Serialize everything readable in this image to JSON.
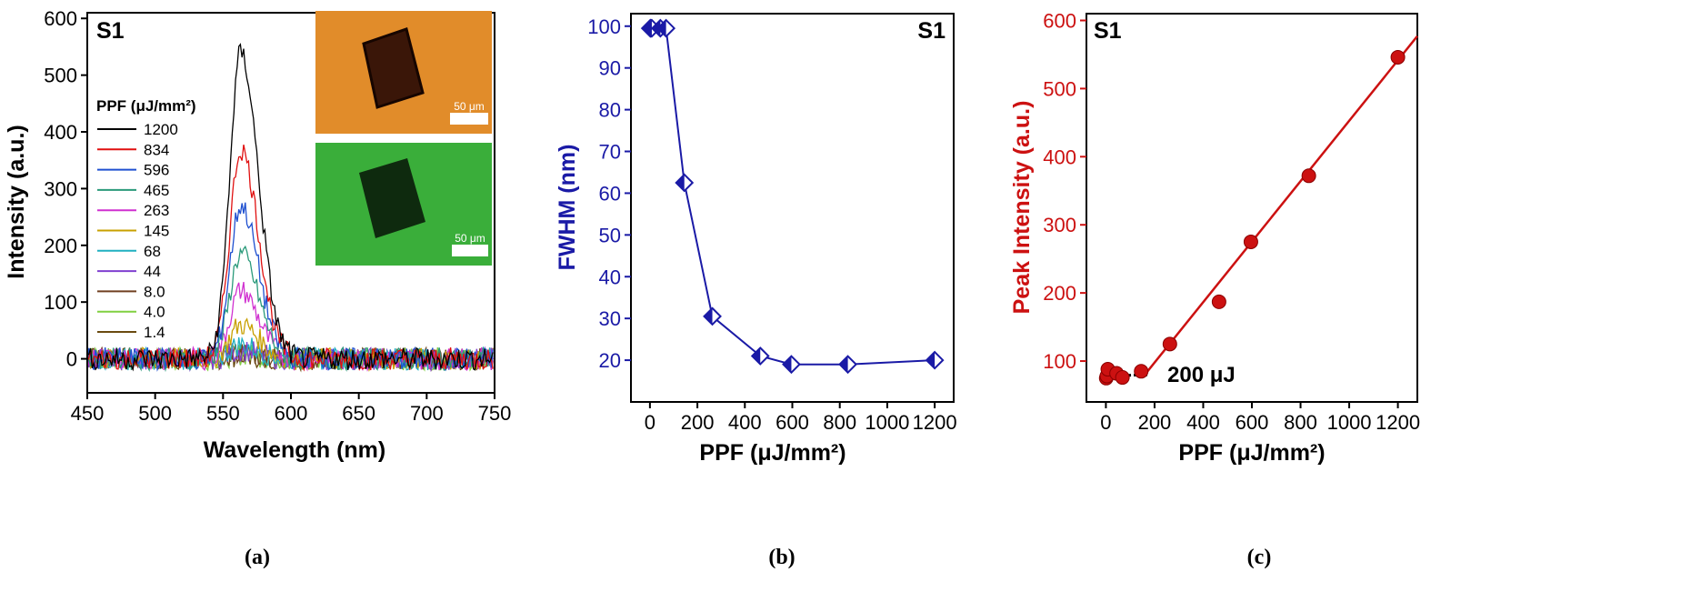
{
  "captions": [
    "(a)",
    "(b)",
    "(c)"
  ],
  "colors": {
    "panel_b": "#1a1aa6",
    "panel_c": "#cc1111",
    "axis": "#000000"
  },
  "insets": [
    {
      "kind": "optical-image",
      "scale_label": "50 μm",
      "color": "#d87a20"
    },
    {
      "kind": "fluorescence-image",
      "scale_label": "50 μm",
      "color": "#2aa02a"
    }
  ],
  "chart_data": [
    {
      "type": "line",
      "panel": "(a)",
      "corner_label": "S1",
      "xlabel": "Wavelength (nm)",
      "ylabel": "Intensity (a.u.)",
      "xlim": [
        450,
        750
      ],
      "ylim": [
        -60,
        610
      ],
      "xticks": [
        450,
        500,
        550,
        600,
        650,
        700,
        750
      ],
      "yticks": [
        0,
        100,
        200,
        300,
        400,
        500,
        600
      ],
      "legend_title": "PPF (μJ/mm²)",
      "legend_position": "left",
      "peak_wavelength": 563,
      "series": [
        {
          "name": "1200",
          "peak": 540,
          "color": "#000000"
        },
        {
          "name": "834",
          "peak": 370,
          "color": "#e01010"
        },
        {
          "name": "596",
          "peak": 270,
          "color": "#1f50d0"
        },
        {
          "name": "465",
          "peak": 185,
          "color": "#2a9a7a"
        },
        {
          "name": "263",
          "peak": 120,
          "color": "#d030d0"
        },
        {
          "name": "145",
          "peak": 60,
          "color": "#c8a000"
        },
        {
          "name": "68",
          "peak": 25,
          "color": "#20b0c0"
        },
        {
          "name": "44",
          "peak": 15,
          "color": "#8040d0"
        },
        {
          "name": "8.0",
          "peak": 10,
          "color": "#704020"
        },
        {
          "name": "4.0",
          "peak": 8,
          "color": "#80d040"
        },
        {
          "name": "1.4",
          "peak": 6,
          "color": "#6a4a10"
        }
      ]
    },
    {
      "type": "line",
      "panel": "(b)",
      "corner_label": "S1",
      "xlabel": "PPF (μJ/mm²)",
      "ylabel": "FWHM (nm)",
      "xlim": [
        -80,
        1280
      ],
      "ylim": [
        10,
        103
      ],
      "xticks": [
        0,
        200,
        400,
        600,
        800,
        1000,
        1200
      ],
      "yticks": [
        20,
        30,
        40,
        50,
        60,
        70,
        80,
        90,
        100
      ],
      "marker": "half-filled-diamond",
      "x": [
        1.4,
        4,
        8,
        44,
        68,
        145,
        263,
        465,
        596,
        834,
        1200
      ],
      "y": [
        99.5,
        99.5,
        99.5,
        99.5,
        99.5,
        62.5,
        30.5,
        21,
        19,
        19,
        20
      ]
    },
    {
      "type": "scatter",
      "panel": "(c)",
      "corner_label": "S1",
      "xlabel": "PPF (μJ/mm²)",
      "ylabel": "Peak Intensity (a.u.)",
      "xlim": [
        -80,
        1280
      ],
      "ylim": [
        40,
        610
      ],
      "xticks": [
        0,
        200,
        400,
        600,
        800,
        1000,
        1200
      ],
      "yticks": [
        100,
        200,
        300,
        400,
        500,
        600
      ],
      "x": [
        1.4,
        4,
        8,
        44,
        68,
        145,
        263,
        465,
        596,
        834,
        1200
      ],
      "y": [
        75,
        78,
        88,
        82,
        76,
        85,
        125,
        187,
        275,
        372,
        546
      ],
      "fit_line": {
        "x": [
          160,
          1280
        ],
        "y": [
          80,
          577
        ]
      },
      "baseline": {
        "x": [
          -20,
          180
        ],
        "y": [
          78,
          80
        ]
      },
      "annotation": "200 μJ"
    }
  ]
}
